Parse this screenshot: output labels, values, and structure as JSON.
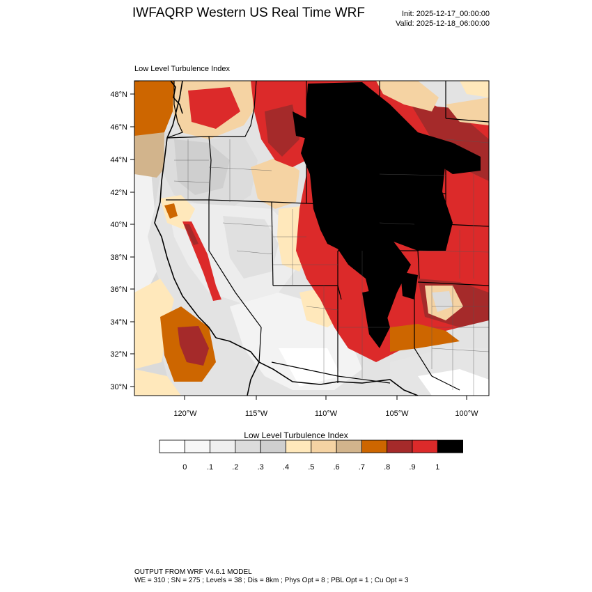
{
  "header": {
    "title": "IWFAQRP Western US Real Time WRF",
    "init": "Init: 2025-12-17_00:00:00",
    "valid": "Valid: 2025-12-18_06:00:00"
  },
  "plot": {
    "title": "Low Level Turbulence Index",
    "lat_labels": [
      "48°N",
      "46°N",
      "44°N",
      "42°N",
      "40°N",
      "38°N",
      "36°N",
      "34°N",
      "32°N",
      "30°N"
    ],
    "lon_labels": [
      "120°W",
      "115°W",
      "110°W",
      "105°W",
      "100°W"
    ]
  },
  "colorbar": {
    "title": "Low Level Turbulence Index",
    "tick_labels": [
      "0",
      ".1",
      ".2",
      ".3",
      ".4",
      ".5",
      ".6",
      ".7",
      ".8",
      ".9",
      "1"
    ],
    "colors": [
      "#ffffff",
      "#f7f7f7",
      "#efefef",
      "#dcdcdc",
      "#cfcfcf",
      "#ffe8bb",
      "#f5d3a3",
      "#d2b48c",
      "#cd6600",
      "#a52a2a",
      "#dc2a2a",
      "#000000"
    ]
  },
  "footer": {
    "line1": "OUTPUT FROM WRF V4.6.1 MODEL",
    "line2": "WE = 310 ; SN = 275 ; Levels = 38 ; Dis = 8km ; Phys Opt = 8 ; PBL Opt = 1 ; Cu Opt = 3"
  }
}
